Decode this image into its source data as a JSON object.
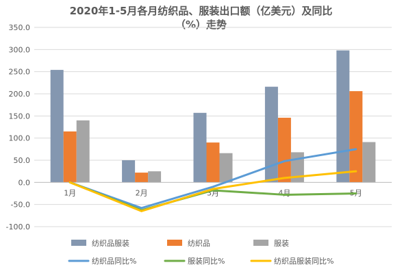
{
  "chart_data": {
    "type": "bar",
    "title_line1": "2020年1-5月各月纺织品、服装出口额（亿美元）及同比",
    "title_line2": "（%）走势",
    "categories": [
      "1月",
      "2月",
      "3月",
      "4月",
      "5月"
    ],
    "ylim": [
      -100,
      350
    ],
    "y_ticks": [
      "-100.0",
      "-50.0",
      "0.0",
      "50.0",
      "100.0",
      "150.0",
      "200.0",
      "250.0",
      "300.0",
      "350.0"
    ],
    "y_tick_values": [
      -100,
      -50,
      0,
      50,
      100,
      150,
      200,
      250,
      300,
      350
    ],
    "grid": true,
    "legend_position": "bottom",
    "bar_series": [
      {
        "name": "纺织品服装",
        "color": "#8497b0",
        "values": [
          254,
          50,
          157,
          216,
          298
        ]
      },
      {
        "name": "纺织品",
        "color": "#ed7d31",
        "values": [
          115,
          22,
          90,
          146,
          206
        ]
      },
      {
        "name": "服装",
        "color": "#a5a5a5",
        "values": [
          140,
          25,
          66,
          68,
          91
        ]
      }
    ],
    "line_series": [
      {
        "name": "纺织品同比%",
        "color": "#5b9bd5",
        "values": [
          0,
          -58,
          -10,
          48,
          75
        ]
      },
      {
        "name": "服装同比%",
        "color": "#70ad47",
        "values": [
          0,
          -63,
          -18,
          -28,
          -25
        ]
      },
      {
        "name": "纺织品服装同比%",
        "color": "#ffc000",
        "values": [
          0,
          -65,
          -15,
          10,
          25
        ]
      }
    ]
  }
}
